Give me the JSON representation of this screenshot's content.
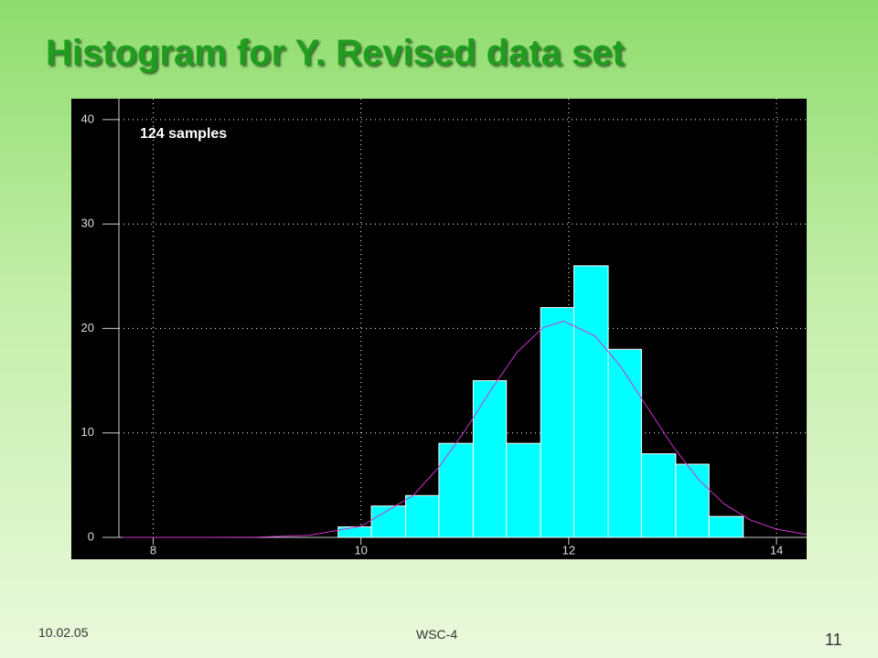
{
  "title": "Histogram for Y. Revised data set",
  "footer": {
    "date": "10.02.05",
    "center": "WSC-4",
    "page": "11"
  },
  "chart_data": {
    "type": "histogram",
    "annotation": "124 samples",
    "bins": [
      9.78,
      10.1,
      10.43,
      10.75,
      11.08,
      11.4,
      11.73,
      12.05,
      12.38,
      12.7,
      13.03,
      13.35,
      13.68
    ],
    "values": [
      1,
      3,
      4,
      9,
      15,
      9,
      22,
      26,
      18,
      8,
      7,
      2
    ],
    "color": "#00ffff",
    "fit": {
      "color": "#cc33cc",
      "x": [
        7.7,
        8.5,
        9,
        9.5,
        10,
        10.5,
        10.75,
        11,
        11.25,
        11.5,
        11.75,
        11.95,
        12.25,
        12.5,
        12.75,
        13,
        13.25,
        13.5,
        13.75,
        14,
        14.29
      ],
      "values": [
        0,
        0.002,
        0.02,
        0.19,
        1.06,
        4.0,
        6.72,
        10.2,
        14.1,
        17.7,
        20.06,
        20.7,
        19.3,
        16.35,
        12.55,
        8.75,
        5.53,
        3.17,
        1.65,
        0.78,
        0.29
      ]
    },
    "xlim": [
      7.67,
      14.29
    ],
    "ylim": [
      0,
      42
    ],
    "xticks": [
      8,
      10,
      12,
      14
    ],
    "yticks": [
      0,
      10,
      20,
      30,
      40
    ],
    "grid": true
  }
}
